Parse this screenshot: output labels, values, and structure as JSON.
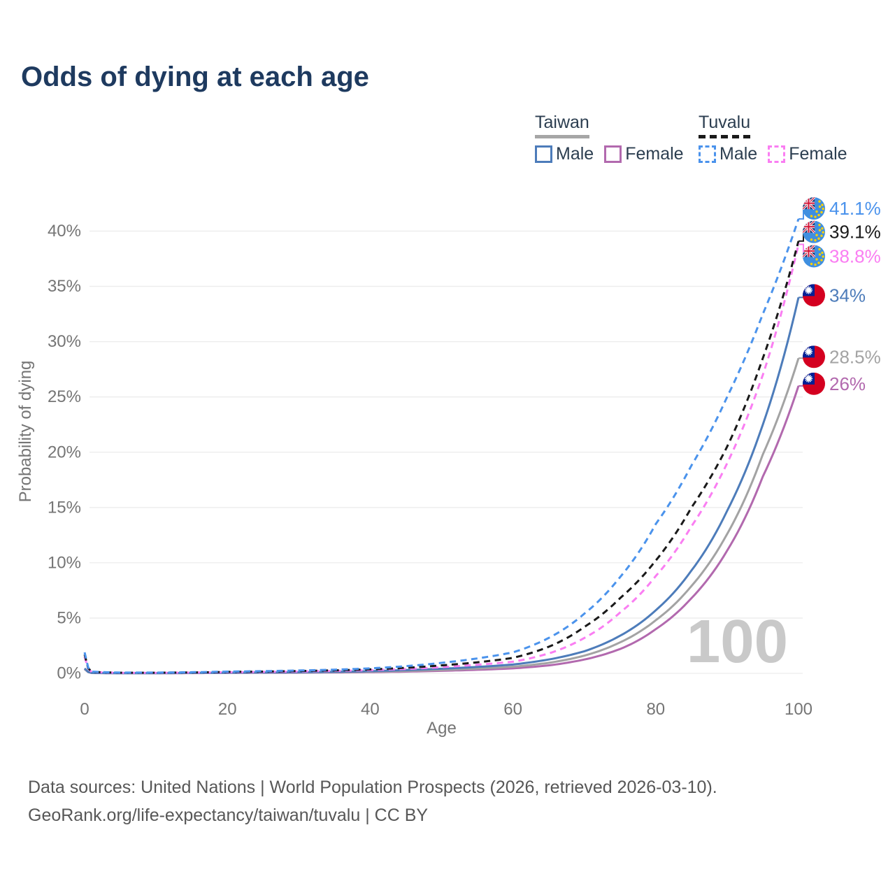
{
  "title": "Odds of dying at each age",
  "watermark": "100",
  "legend": {
    "groups": [
      {
        "title": "Taiwan",
        "line_style": "solid",
        "swatch_color": "#a6a6a6",
        "items": [
          {
            "label": "Male",
            "color": "#4d7cba"
          },
          {
            "label": "Female",
            "color": "#b269ae"
          }
        ]
      },
      {
        "title": "Tuvalu",
        "line_style": "dashed",
        "swatch_color": "#1a1a1a",
        "items": [
          {
            "label": "Male",
            "color": "#4b93ec"
          },
          {
            "label": "Female",
            "color": "#fa7ef2"
          }
        ]
      }
    ]
  },
  "footer": {
    "line1": "Data sources: United Nations | World Population Prospects (2026, retrieved 2026-03-10).",
    "line2": "GeoRank.org/life-expectancy/taiwan/tuvalu | CC BY"
  },
  "flags": {
    "tuvalu": {
      "field": "#3f8fe0",
      "jack": "#23356e",
      "white": "#ffffff",
      "red": "#d21034",
      "star": "#ffd100"
    },
    "taiwan": {
      "field": "#d40020",
      "canton": "#002096",
      "sun": "#ffffff"
    }
  },
  "chart_data": {
    "type": "line",
    "title": "Odds of dying at each age",
    "xlabel": "Age",
    "ylabel": "Probability of dying",
    "xlim": [
      0,
      100
    ],
    "ylim_percent": [
      0,
      42
    ],
    "x_ticks": [
      0,
      20,
      40,
      60,
      80,
      100
    ],
    "y_ticks_percent": [
      0,
      5,
      10,
      15,
      20,
      25,
      30,
      35,
      40
    ],
    "grid": true,
    "legend_position": "top-right",
    "knot_ages": [
      0,
      1,
      5,
      10,
      15,
      20,
      25,
      30,
      35,
      40,
      45,
      50,
      55,
      60,
      65,
      70,
      75,
      80,
      85,
      90,
      95,
      100
    ],
    "series": [
      {
        "id": "taiwan-female",
        "name": "Taiwan Female",
        "country": "Taiwan",
        "sex": "Female",
        "color": "#b269ae",
        "dashed": false,
        "flag": "taiwan",
        "end_label": "26%",
        "end_value_percent": 26.0,
        "label_dy": -3,
        "values_percent": [
          0.38,
          0.03,
          0.015,
          0.015,
          0.025,
          0.035,
          0.045,
          0.06,
          0.08,
          0.11,
          0.16,
          0.23,
          0.32,
          0.45,
          0.72,
          1.25,
          2.2,
          4.0,
          6.8,
          11.1,
          17.8,
          26.0
        ]
      },
      {
        "id": "taiwan-total",
        "name": "Taiwan (both sexes)",
        "country": "Taiwan",
        "sex": "Both",
        "color": "#a3a3a3",
        "dashed": false,
        "flag": "taiwan",
        "end_label": "28.5%",
        "end_value_percent": 28.5,
        "label_dy": -2,
        "values_percent": [
          0.4,
          0.035,
          0.018,
          0.018,
          0.03,
          0.045,
          0.06,
          0.08,
          0.11,
          0.15,
          0.22,
          0.31,
          0.43,
          0.6,
          0.95,
          1.6,
          2.8,
          4.8,
          7.9,
          12.6,
          19.8,
          28.5
        ]
      },
      {
        "id": "taiwan-male",
        "name": "Taiwan Male",
        "country": "Taiwan",
        "sex": "Male",
        "color": "#4d7cba",
        "dashed": false,
        "flag": "taiwan",
        "end_label": "34%",
        "end_value_percent": 34.0,
        "label_dy": -3,
        "values_percent": [
          0.45,
          0.04,
          0.02,
          0.02,
          0.04,
          0.06,
          0.08,
          0.1,
          0.14,
          0.2,
          0.3,
          0.42,
          0.58,
          0.8,
          1.25,
          2.0,
          3.4,
          5.7,
          9.3,
          14.7,
          22.5,
          34.0
        ]
      },
      {
        "id": "tuvalu-female",
        "name": "Tuvalu Female",
        "country": "Tuvalu",
        "sex": "Female",
        "color": "#fa7ef2",
        "dashed": true,
        "flag": "tuvalu",
        "end_label": "38.8%",
        "end_value_percent": 38.8,
        "label_dy": 17,
        "values_percent": [
          1.5,
          0.12,
          0.05,
          0.05,
          0.07,
          0.1,
          0.13,
          0.17,
          0.22,
          0.29,
          0.4,
          0.56,
          0.78,
          1.05,
          1.8,
          3.2,
          5.5,
          8.8,
          13.3,
          19.0,
          27.0,
          38.8
        ]
      },
      {
        "id": "tuvalu-total",
        "name": "Tuvalu (both sexes)",
        "country": "Tuvalu",
        "sex": "Both",
        "color": "#1a1a1a",
        "dashed": true,
        "flag": "tuvalu",
        "end_label": "39.1%",
        "end_value_percent": 39.1,
        "label_dy": -13,
        "values_percent": [
          1.7,
          0.13,
          0.06,
          0.06,
          0.08,
          0.13,
          0.16,
          0.21,
          0.27,
          0.36,
          0.5,
          0.72,
          1.0,
          1.4,
          2.4,
          4.2,
          6.8,
          10.2,
          15.0,
          20.5,
          28.5,
          39.1
        ]
      },
      {
        "id": "tuvalu-male",
        "name": "Tuvalu Male",
        "country": "Tuvalu",
        "sex": "Male",
        "color": "#4b93ec",
        "dashed": true,
        "flag": "tuvalu",
        "end_label": "41.1%",
        "end_value_percent": 41.1,
        "label_dy": -15,
        "values_percent": [
          1.9,
          0.15,
          0.07,
          0.07,
          0.1,
          0.16,
          0.2,
          0.26,
          0.33,
          0.45,
          0.65,
          0.95,
          1.35,
          1.9,
          3.2,
          5.4,
          8.7,
          13.5,
          18.8,
          25.0,
          32.5,
          41.1
        ]
      }
    ]
  }
}
